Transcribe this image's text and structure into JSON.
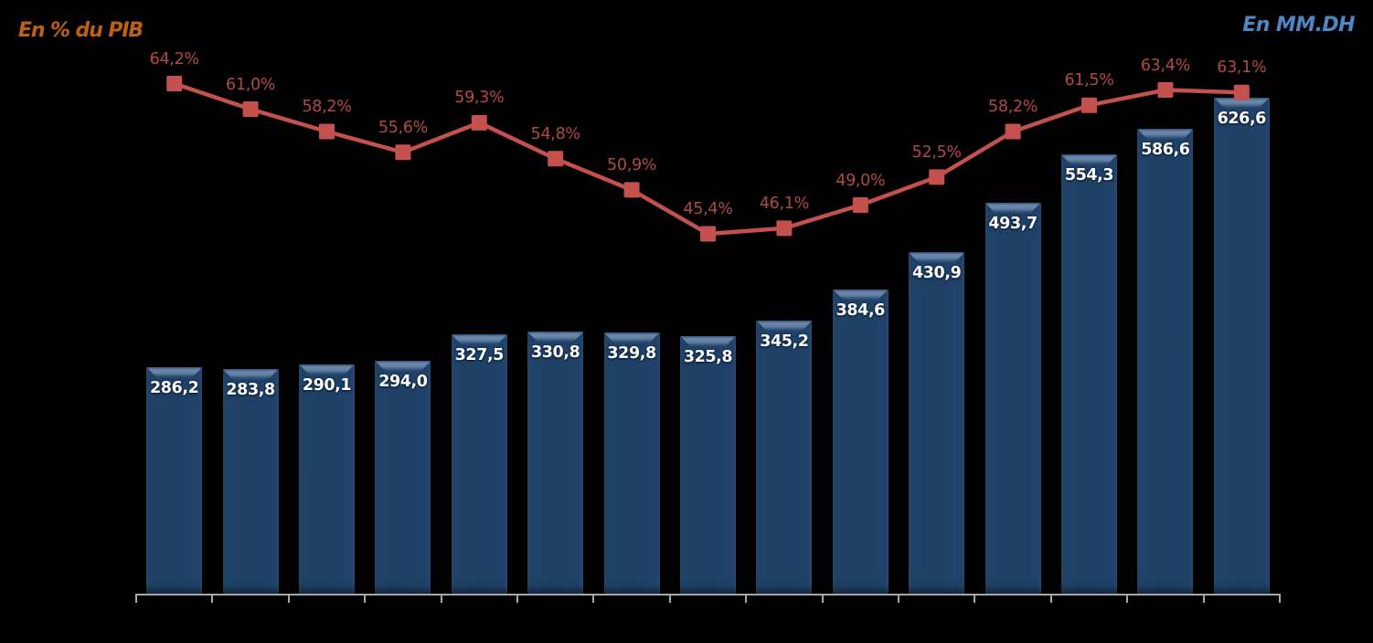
{
  "chart_data": {
    "type": "combo-bar-line",
    "background_color": "#000000",
    "left_axis_title": "En % du PIB",
    "right_axis_title": "En MM.DH",
    "left_axis_title_color": "#BF6114",
    "right_axis_title_color": "#4E86C6",
    "x_axis": {
      "line_color": "#A6A6A6",
      "tick_count": 16,
      "tick_labels": [],
      "labels_visible": false
    },
    "gridlines": false,
    "legend": false,
    "value_axis_zero_at_baseline": true,
    "series": [
      {
        "name": "En MM.DH",
        "type": "bar",
        "color": "#1E4065",
        "label_color": "#FFFFFF",
        "values": [
          286.2,
          283.8,
          290.1,
          294.0,
          327.5,
          330.8,
          329.8,
          325.8,
          345.2,
          384.6,
          430.9,
          493.7,
          554.3,
          586.6,
          626.6
        ],
        "labels": [
          "286,2",
          "283,8",
          "290,1",
          "294,0",
          "327,5",
          "330,8",
          "329,8",
          "325,8",
          "345,2",
          "384,6",
          "430,9",
          "493,7",
          "554,3",
          "586,6",
          "626,6"
        ]
      },
      {
        "name": "En % du PIB",
        "type": "line",
        "color": "#C4514E",
        "marker": "square",
        "label_color": "#B04A46",
        "values": [
          64.2,
          61.0,
          58.2,
          55.6,
          59.3,
          54.8,
          50.9,
          45.4,
          46.1,
          49.0,
          52.5,
          58.2,
          61.5,
          63.4,
          63.1
        ],
        "labels": [
          "64,2%",
          "61,0%",
          "58,2%",
          "55,6%",
          "59,3%",
          "54,8%",
          "50,9%",
          "45,4%",
          "46,1%",
          "49,0%",
          "52,5%",
          "58,2%",
          "61,5%",
          "63,4%",
          "63,1%"
        ]
      }
    ]
  }
}
